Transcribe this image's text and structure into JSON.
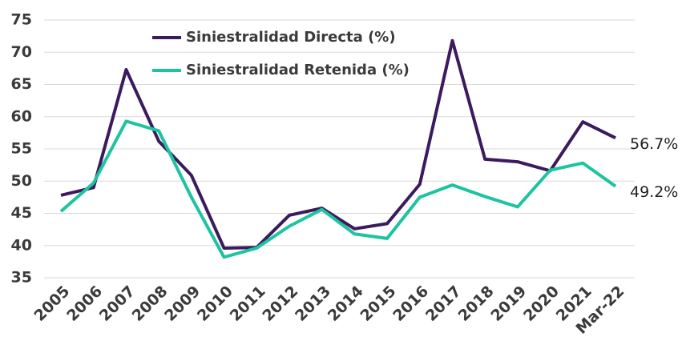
{
  "chart_data": {
    "type": "line",
    "categories": [
      "2005",
      "2006",
      "2007",
      "2008",
      "2009",
      "2010",
      "2011",
      "2012",
      "2013",
      "2014",
      "2015",
      "2016",
      "2017",
      "2018",
      "2019",
      "2020",
      "2021",
      "Mar-22"
    ],
    "series": [
      {
        "name": "Siniestralidad Directa (%)",
        "color": "#3b1a5e",
        "values": [
          47.8,
          49.0,
          67.3,
          56.2,
          50.9,
          39.6,
          39.7,
          44.7,
          45.8,
          42.6,
          43.4,
          49.5,
          71.8,
          53.4,
          53.0,
          51.6,
          59.2,
          56.7
        ],
        "value_labels": [
          null,
          null,
          null,
          null,
          null,
          null,
          null,
          null,
          null,
          null,
          null,
          null,
          null,
          null,
          null,
          null,
          null,
          "56.7%"
        ]
      },
      {
        "name": "Siniestralidad Retenida (%)",
        "color": "#1ec3a0",
        "values": [
          45.3,
          49.7,
          59.3,
          57.8,
          47.5,
          38.2,
          39.6,
          43.0,
          45.6,
          41.8,
          41.1,
          47.5,
          49.4,
          47.6,
          46.0,
          51.7,
          52.8,
          49.2
        ],
        "value_labels": [
          null,
          null,
          null,
          null,
          null,
          null,
          null,
          null,
          null,
          null,
          null,
          null,
          null,
          null,
          null,
          null,
          null,
          "49.2%"
        ]
      }
    ],
    "ylim": [
      35,
      75
    ],
    "yticks": [
      35,
      40,
      45,
      50,
      55,
      60,
      65,
      70,
      75
    ],
    "grid": true
  }
}
